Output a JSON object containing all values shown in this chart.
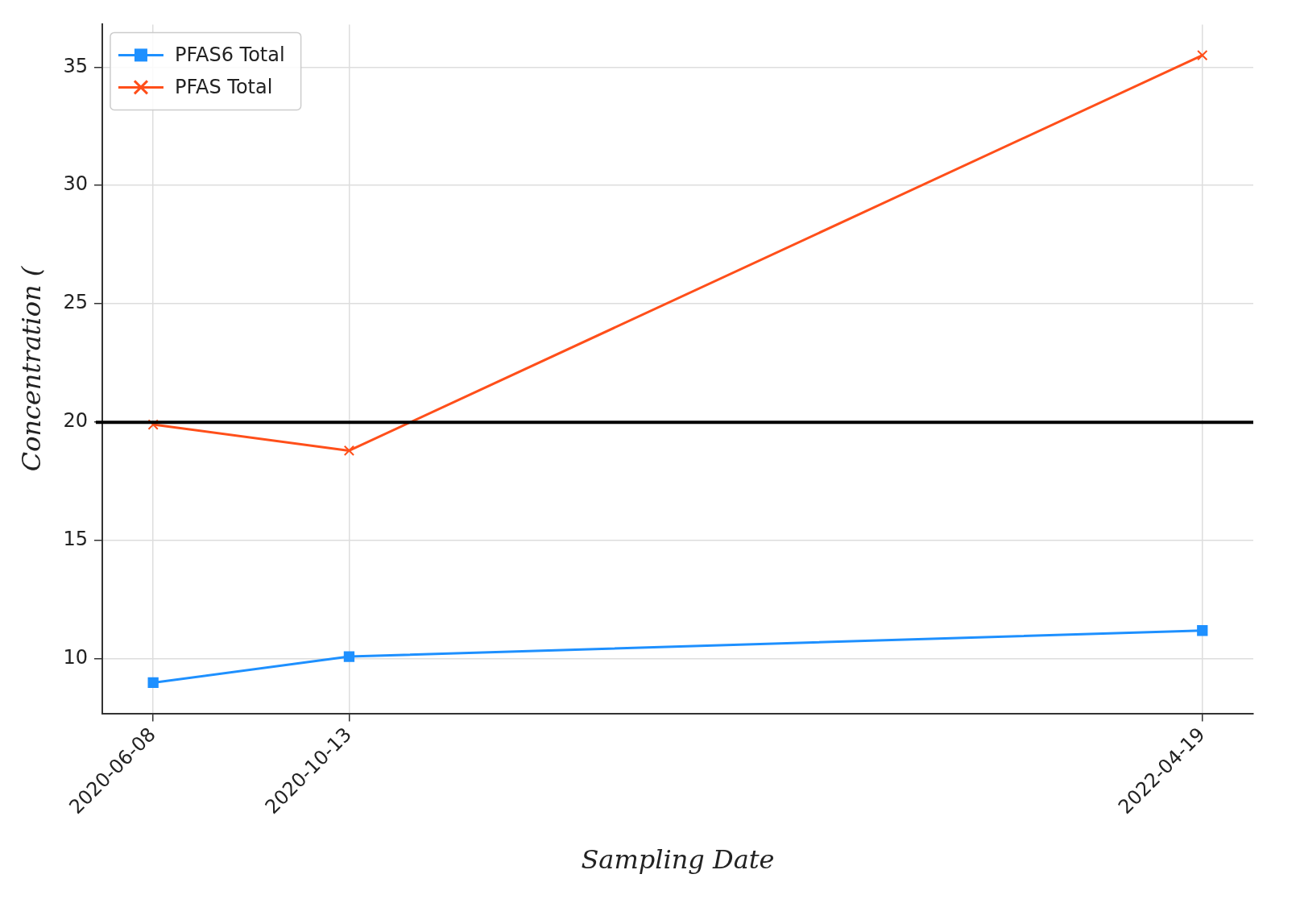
{
  "chart_data": {
    "type": "line",
    "xlabel": "Sampling Date",
    "ylabel": "Concentration (",
    "x": [
      "2020-06-08",
      "2020-10-13",
      "2022-04-19"
    ],
    "series": [
      {
        "name": "PFAS6 Total",
        "color": "#1e90ff",
        "marker": "square",
        "values": [
          9.0,
          10.1,
          11.2
        ]
      },
      {
        "name": "PFAS Total",
        "color": "#ff4f1a",
        "marker": "cross",
        "values": [
          19.9,
          18.8,
          35.5
        ]
      }
    ],
    "xlim": [
      "2020-05-06",
      "2022-05-22"
    ],
    "xticks": [
      "2020-06-08",
      "2020-10-13",
      "2022-04-19"
    ],
    "ylim": [
      7.7,
      36.8
    ],
    "yticks": [
      10,
      15,
      20,
      25,
      30,
      35
    ],
    "ref_lines": [
      {
        "axis": "y",
        "value": 20,
        "color": "#000000"
      }
    ],
    "grid": true,
    "legend": "top left",
    "line_style": "solid"
  }
}
